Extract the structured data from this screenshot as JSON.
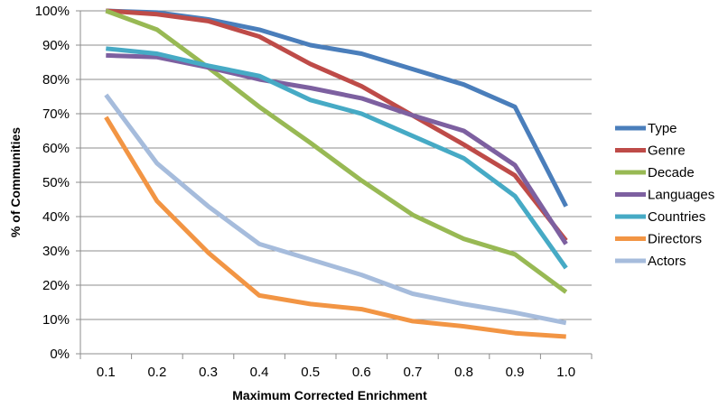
{
  "chart_data": {
    "type": "line",
    "title": "",
    "xlabel": "Maximum Corrected Enrichment",
    "ylabel": "% of Communities",
    "x": [
      "0.1",
      "0.2",
      "0.3",
      "0.4",
      "0.5",
      "0.6",
      "0.7",
      "0.8",
      "0.9",
      "1.0"
    ],
    "ylim": [
      0,
      100
    ],
    "yticks": [
      "0%",
      "10%",
      "20%",
      "30%",
      "40%",
      "50%",
      "60%",
      "70%",
      "80%",
      "90%",
      "100%"
    ],
    "grid": "horizontal",
    "legend_position": "right",
    "series": [
      {
        "name": "Type",
        "color": "#4a7ebb",
        "values": [
          100,
          99.5,
          97.5,
          94.5,
          90,
          87.5,
          83,
          78.5,
          72,
          43
        ]
      },
      {
        "name": "Genre",
        "color": "#be4b48",
        "values": [
          100,
          99,
          97,
          92.5,
          84.5,
          78,
          69.5,
          61,
          52,
          33
        ]
      },
      {
        "name": "Decade",
        "color": "#98b954",
        "values": [
          100,
          94.5,
          83.5,
          72,
          61.5,
          50.5,
          40.5,
          33.5,
          29,
          18
        ]
      },
      {
        "name": "Languages",
        "color": "#7d60a0",
        "values": [
          87,
          86.5,
          83.5,
          80,
          77.5,
          74.5,
          69.5,
          65,
          55,
          32
        ]
      },
      {
        "name": "Countries",
        "color": "#46aac5",
        "values": [
          89,
          87.5,
          84,
          81,
          74,
          70,
          63.5,
          57,
          46,
          25
        ]
      },
      {
        "name": "Directors",
        "color": "#f29544",
        "values": [
          69,
          44.5,
          29.5,
          17,
          14.5,
          13,
          9.5,
          8,
          6,
          5
        ]
      },
      {
        "name": "Actors",
        "color": "#a6bcdc",
        "values": [
          75.5,
          55.5,
          43,
          32,
          27.5,
          23,
          17.5,
          14.5,
          12,
          9
        ]
      }
    ]
  }
}
